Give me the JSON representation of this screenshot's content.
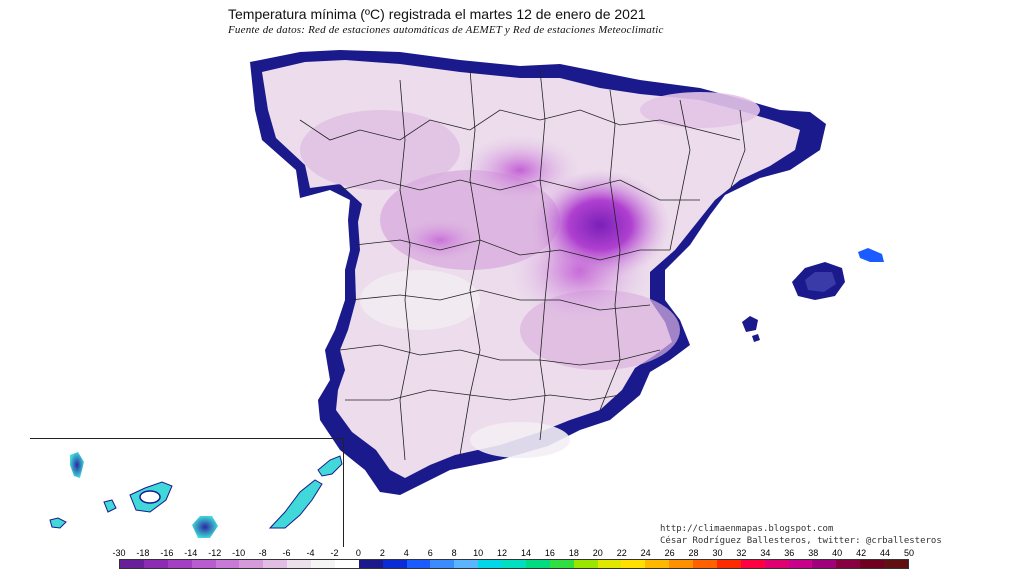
{
  "title": "Temperatura mínima (ºC) registrada el martes 12 de enero de 2021",
  "subtitle": "Fuente de datos: Red de estaciones automáticas de AEMET y Red de estaciones Meteoclimatic",
  "credits": {
    "url": "http://climaenmapas.blogspot.com",
    "author": "César Rodríguez Ballesteros, twitter: @crballesteros"
  },
  "legend": {
    "labels": [
      "-30",
      "-18",
      "-16",
      "-14",
      "-12",
      "-10",
      "-8",
      "-6",
      "-4",
      "-2",
      "0",
      "2",
      "4",
      "6",
      "8",
      "10",
      "12",
      "14",
      "16",
      "18",
      "20",
      "22",
      "24",
      "26",
      "28",
      "30",
      "32",
      "34",
      "36",
      "38",
      "40",
      "42",
      "44",
      "50"
    ],
    "colors": [
      "#6a1f9a",
      "#8e2bb5",
      "#a43fc4",
      "#b85ccf",
      "#c77ad6",
      "#d59ada",
      "#e2bde3",
      "#ece0ec",
      "#f4f4f4",
      "#ffffff",
      "#1a1a8c",
      "#0a2bd6",
      "#1a5cff",
      "#3a8cff",
      "#5ab4ff",
      "#00d8e8",
      "#00e0c0",
      "#00dd80",
      "#30e040",
      "#9ae600",
      "#e0e800",
      "#ffe000",
      "#ffb800",
      "#ff9000",
      "#ff6000",
      "#ff2a00",
      "#ff0040",
      "#e00070",
      "#c8008a",
      "#a0007a",
      "#880040",
      "#700020",
      "#601010"
    ]
  },
  "colors": {
    "coast_cold": "#1a1a8c",
    "plateau": "#ecdcec",
    "cold_core": "#b040d0",
    "extreme_core": "#7a20b8",
    "canary": "#40d8d8"
  }
}
